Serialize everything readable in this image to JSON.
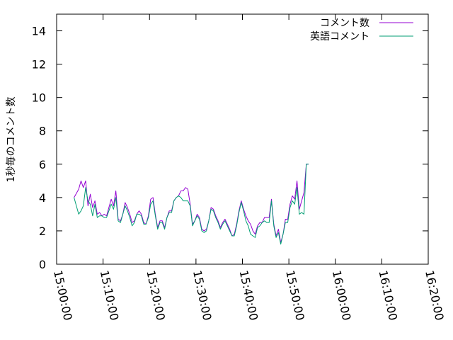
{
  "chart_data": {
    "type": "line",
    "ylabel": "1秒毎のコメント数",
    "xlim": [
      "15:00:00",
      "16:20:00"
    ],
    "ylim": [
      0,
      15
    ],
    "y_ticks": [
      "0",
      "2",
      "4",
      "6",
      "8",
      "10",
      "12",
      "14"
    ],
    "x_ticks": [
      "15:00:00",
      "15:10:00",
      "15:20:00",
      "15:30:00",
      "15:40:00",
      "15:50:00",
      "16:00:00",
      "16:10:00",
      "16:20:00"
    ],
    "legend_position": "top-right",
    "series": [
      {
        "name": "コメント数",
        "color": "#9400d3",
        "points": [
          [
            "15:03:45",
            4.0
          ],
          [
            "15:04:45",
            4.5
          ],
          [
            "15:05:15",
            5.0
          ],
          [
            "15:05:45",
            4.6
          ],
          [
            "15:06:15",
            5.0
          ],
          [
            "15:06:45",
            3.5
          ],
          [
            "15:07:15",
            4.2
          ],
          [
            "15:07:45",
            3.4
          ],
          [
            "15:08:15",
            3.8
          ],
          [
            "15:08:45",
            3.0
          ],
          [
            "15:09:15",
            3.1
          ],
          [
            "15:09:45",
            2.9
          ],
          [
            "15:10:15",
            3.0
          ],
          [
            "15:10:45",
            2.9
          ],
          [
            "15:11:15",
            3.4
          ],
          [
            "15:11:45",
            3.9
          ],
          [
            "15:12:15",
            3.5
          ],
          [
            "15:12:45",
            4.4
          ],
          [
            "15:13:15",
            2.7
          ],
          [
            "15:13:45",
            2.6
          ],
          [
            "15:14:15",
            3.0
          ],
          [
            "15:14:45",
            3.7
          ],
          [
            "15:15:15",
            3.4
          ],
          [
            "15:15:45",
            3.0
          ],
          [
            "15:16:15",
            2.5
          ],
          [
            "15:16:45",
            2.6
          ],
          [
            "15:17:15",
            3.0
          ],
          [
            "15:17:45",
            3.2
          ],
          [
            "15:18:15",
            3.0
          ],
          [
            "15:18:45",
            2.5
          ],
          [
            "15:19:15",
            2.4
          ],
          [
            "15:19:45",
            2.9
          ],
          [
            "15:20:15",
            3.9
          ],
          [
            "15:20:45",
            4.0
          ],
          [
            "15:21:15",
            3.0
          ],
          [
            "15:21:45",
            2.2
          ],
          [
            "15:22:15",
            2.6
          ],
          [
            "15:22:45",
            2.6
          ],
          [
            "15:23:15",
            2.2
          ],
          [
            "15:23:45",
            2.8
          ],
          [
            "15:24:15",
            3.2
          ],
          [
            "15:24:45",
            3.2
          ],
          [
            "15:25:15",
            3.8
          ],
          [
            "15:25:45",
            4.0
          ],
          [
            "15:26:15",
            4.1
          ],
          [
            "15:26:45",
            4.4
          ],
          [
            "15:27:15",
            4.4
          ],
          [
            "15:27:45",
            4.6
          ],
          [
            "15:28:15",
            4.5
          ],
          [
            "15:28:45",
            3.6
          ],
          [
            "15:29:15",
            2.4
          ],
          [
            "15:29:45",
            2.6
          ],
          [
            "15:30:15",
            3.0
          ],
          [
            "15:30:45",
            2.8
          ],
          [
            "15:31:15",
            2.1
          ],
          [
            "15:31:45",
            2.0
          ],
          [
            "15:32:15",
            2.1
          ],
          [
            "15:32:45",
            2.6
          ],
          [
            "15:33:15",
            3.4
          ],
          [
            "15:33:45",
            3.3
          ],
          [
            "15:34:15",
            2.9
          ],
          [
            "15:34:45",
            2.6
          ],
          [
            "15:35:15",
            2.2
          ],
          [
            "15:35:45",
            2.5
          ],
          [
            "15:36:15",
            2.7
          ],
          [
            "15:36:45",
            2.4
          ],
          [
            "15:37:15",
            2.1
          ],
          [
            "15:37:45",
            1.7
          ],
          [
            "15:38:15",
            1.8
          ],
          [
            "15:38:45",
            2.4
          ],
          [
            "15:39:15",
            3.2
          ],
          [
            "15:39:45",
            3.8
          ],
          [
            "15:40:15",
            3.3
          ],
          [
            "15:40:45",
            2.9
          ],
          [
            "15:41:15",
            2.6
          ],
          [
            "15:41:45",
            2.4
          ],
          [
            "15:42:15",
            2.0
          ],
          [
            "15:42:45",
            1.8
          ],
          [
            "15:43:15",
            2.3
          ],
          [
            "15:43:45",
            2.5
          ],
          [
            "15:44:15",
            2.5
          ],
          [
            "15:44:45",
            2.8
          ],
          [
            "15:45:15",
            2.8
          ],
          [
            "15:45:45",
            2.8
          ],
          [
            "15:46:15",
            3.9
          ],
          [
            "15:46:45",
            2.4
          ],
          [
            "15:47:15",
            1.7
          ],
          [
            "15:47:45",
            2.1
          ],
          [
            "15:48:15",
            1.3
          ],
          [
            "15:48:45",
            1.8
          ],
          [
            "15:49:15",
            2.7
          ],
          [
            "15:49:45",
            2.7
          ],
          [
            "15:50:15",
            3.6
          ],
          [
            "15:50:45",
            4.1
          ],
          [
            "15:51:15",
            3.9
          ],
          [
            "15:51:45",
            5.0
          ],
          [
            "15:52:15",
            3.3
          ],
          [
            "15:52:45",
            3.8
          ],
          [
            "15:53:15",
            4.3
          ],
          [
            "15:53:45",
            6.0
          ],
          [
            "15:54:15",
            6.0
          ]
        ]
      },
      {
        "name": "英語コメント",
        "color": "#009e73",
        "points": [
          [
            "15:03:45",
            4.0
          ],
          [
            "15:04:45",
            3.0
          ],
          [
            "15:05:15",
            3.2
          ],
          [
            "15:05:45",
            3.5
          ],
          [
            "15:06:15",
            4.6
          ],
          [
            "15:06:45",
            3.8
          ],
          [
            "15:07:15",
            3.6
          ],
          [
            "15:07:45",
            2.9
          ],
          [
            "15:08:15",
            3.6
          ],
          [
            "15:08:45",
            2.8
          ],
          [
            "15:09:15",
            2.9
          ],
          [
            "15:09:45",
            2.9
          ],
          [
            "15:10:15",
            2.8
          ],
          [
            "15:10:45",
            2.8
          ],
          [
            "15:11:15",
            3.2
          ],
          [
            "15:11:45",
            3.6
          ],
          [
            "15:12:15",
            3.3
          ],
          [
            "15:12:45",
            4.0
          ],
          [
            "15:13:15",
            2.6
          ],
          [
            "15:13:45",
            2.5
          ],
          [
            "15:14:15",
            3.0
          ],
          [
            "15:14:45",
            3.5
          ],
          [
            "15:15:15",
            3.2
          ],
          [
            "15:15:45",
            2.8
          ],
          [
            "15:16:15",
            2.3
          ],
          [
            "15:16:45",
            2.5
          ],
          [
            "15:17:15",
            3.0
          ],
          [
            "15:17:45",
            3.0
          ],
          [
            "15:18:15",
            2.9
          ],
          [
            "15:18:45",
            2.4
          ],
          [
            "15:19:15",
            2.4
          ],
          [
            "15:19:45",
            2.8
          ],
          [
            "15:20:15",
            3.6
          ],
          [
            "15:20:45",
            3.8
          ],
          [
            "15:21:15",
            2.9
          ],
          [
            "15:21:45",
            2.1
          ],
          [
            "15:22:15",
            2.5
          ],
          [
            "15:22:45",
            2.5
          ],
          [
            "15:23:15",
            2.1
          ],
          [
            "15:23:45",
            2.8
          ],
          [
            "15:24:15",
            3.1
          ],
          [
            "15:24:45",
            3.1
          ],
          [
            "15:25:15",
            3.8
          ],
          [
            "15:25:45",
            4.0
          ],
          [
            "15:26:15",
            4.1
          ],
          [
            "15:26:45",
            4.0
          ],
          [
            "15:27:15",
            3.8
          ],
          [
            "15:27:45",
            3.8
          ],
          [
            "15:28:15",
            3.8
          ],
          [
            "15:28:45",
            3.5
          ],
          [
            "15:29:15",
            2.3
          ],
          [
            "15:29:45",
            2.6
          ],
          [
            "15:30:15",
            2.9
          ],
          [
            "15:30:45",
            2.7
          ],
          [
            "15:31:15",
            2.0
          ],
          [
            "15:31:45",
            1.9
          ],
          [
            "15:32:15",
            2.0
          ],
          [
            "15:32:45",
            2.6
          ],
          [
            "15:33:15",
            3.3
          ],
          [
            "15:33:45",
            3.2
          ],
          [
            "15:34:15",
            2.8
          ],
          [
            "15:34:45",
            2.5
          ],
          [
            "15:35:15",
            2.1
          ],
          [
            "15:35:45",
            2.4
          ],
          [
            "15:36:15",
            2.6
          ],
          [
            "15:36:45",
            2.3
          ],
          [
            "15:37:15",
            2.0
          ],
          [
            "15:37:45",
            1.7
          ],
          [
            "15:38:15",
            1.7
          ],
          [
            "15:38:45",
            2.3
          ],
          [
            "15:39:15",
            3.1
          ],
          [
            "15:39:45",
            3.7
          ],
          [
            "15:40:15",
            3.2
          ],
          [
            "15:40:45",
            2.6
          ],
          [
            "15:41:15",
            2.3
          ],
          [
            "15:41:45",
            1.8
          ],
          [
            "15:42:15",
            1.7
          ],
          [
            "15:42:45",
            1.6
          ],
          [
            "15:43:15",
            2.2
          ],
          [
            "15:43:45",
            2.3
          ],
          [
            "15:44:15",
            2.5
          ],
          [
            "15:44:45",
            2.6
          ],
          [
            "15:45:15",
            2.5
          ],
          [
            "15:45:45",
            2.5
          ],
          [
            "15:46:15",
            3.8
          ],
          [
            "15:46:45",
            2.3
          ],
          [
            "15:47:15",
            1.6
          ],
          [
            "15:47:45",
            1.9
          ],
          [
            "15:48:15",
            1.2
          ],
          [
            "15:48:45",
            1.8
          ],
          [
            "15:49:15",
            2.5
          ],
          [
            "15:49:45",
            2.5
          ],
          [
            "15:50:15",
            3.4
          ],
          [
            "15:50:45",
            3.8
          ],
          [
            "15:51:15",
            3.6
          ],
          [
            "15:51:45",
            4.6
          ],
          [
            "15:52:15",
            3.0
          ],
          [
            "15:52:45",
            3.1
          ],
          [
            "15:53:15",
            3.0
          ],
          [
            "15:53:45",
            6.0
          ],
          [
            "15:54:15",
            6.0
          ]
        ]
      }
    ]
  }
}
